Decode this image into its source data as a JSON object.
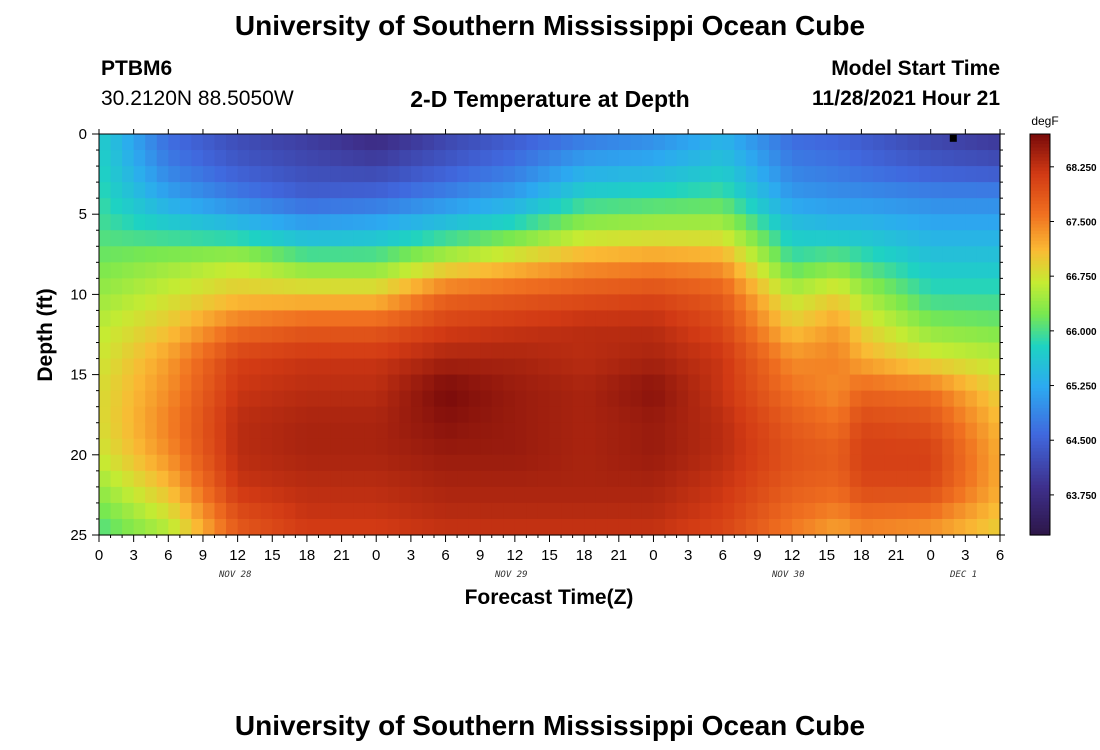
{
  "header": {
    "title": "University of Southern Mississippi Ocean Cube",
    "station": "PTBM6",
    "coords": "30.2120N  88.5050W",
    "plot_title": "2-D Temperature at Depth",
    "model_label": "Model Start Time",
    "model_time": "11/28/2021 Hour 21"
  },
  "footer": {
    "title": "University of Southern Mississippi Ocean Cube"
  },
  "chart_data": {
    "type": "heatmap",
    "title": "2-D Temperature at Depth",
    "xlabel": "Forecast Time(Z)",
    "ylabel": "Depth (ft)",
    "x_ticks": [
      "0",
      "3",
      "6",
      "9",
      "12",
      "15",
      "18",
      "21",
      "0",
      "3",
      "6",
      "9",
      "12",
      "15",
      "18",
      "21",
      "0",
      "3",
      "6",
      "9",
      "12",
      "15",
      "18",
      "21",
      "0",
      "3",
      "6"
    ],
    "x_range_hours": [
      0,
      78
    ],
    "y_ticks": [
      0,
      5,
      10,
      15,
      20,
      25
    ],
    "y_range": [
      0,
      25
    ],
    "date_labels": [
      {
        "label": "NOV 28",
        "hour": 12
      },
      {
        "label": "NOV 29",
        "hour": 36
      },
      {
        "label": "NOV 30",
        "hour": 60
      },
      {
        "label": "DEC 1",
        "hour": 72
      }
    ],
    "colorbar": {
      "unit": "degF",
      "min": 63.2,
      "max": 68.7,
      "tick_values": [
        63.75,
        64.5,
        65.25,
        66.0,
        66.75,
        67.5,
        68.25
      ],
      "tick_labels": [
        "63.750",
        "64.500",
        "65.250",
        "66.000",
        "66.750",
        "67.500",
        "68.250"
      ]
    },
    "depths_ft": [
      0,
      2,
      4,
      6,
      8,
      10,
      12,
      14,
      16,
      18,
      20,
      22,
      24,
      25
    ],
    "times_h": [
      0,
      6,
      12,
      18,
      24,
      30,
      36,
      42,
      48,
      54,
      60,
      64,
      66,
      72,
      78
    ],
    "temperature_degF": [
      [
        65.7,
        64.6,
        64.2,
        64.0,
        63.7,
        64.1,
        64.4,
        64.7,
        64.9,
        65.3,
        64.6,
        64.5,
        64.4,
        64.1,
        63.9
      ],
      [
        65.8,
        64.8,
        64.4,
        64.2,
        64.1,
        64.4,
        64.7,
        65.2,
        65.3,
        65.6,
        64.8,
        64.7,
        64.6,
        64.4,
        64.3
      ],
      [
        65.9,
        65.2,
        64.8,
        64.5,
        64.6,
        64.9,
        65.2,
        65.8,
        65.9,
        66.0,
        65.1,
        65.0,
        65.0,
        64.9,
        64.9
      ],
      [
        66.0,
        65.8,
        65.6,
        65.3,
        65.4,
        65.7,
        66.0,
        66.5,
        66.6,
        66.6,
        65.6,
        65.5,
        65.5,
        65.3,
        65.3
      ],
      [
        66.2,
        66.4,
        66.6,
        66.2,
        66.2,
        66.7,
        67.0,
        67.3,
        67.4,
        67.3,
        66.0,
        66.2,
        66.0,
        65.6,
        65.6
      ],
      [
        66.4,
        66.7,
        67.0,
        67.0,
        67.0,
        67.7,
        67.8,
        67.9,
        68.0,
        67.8,
        66.6,
        66.9,
        66.5,
        65.9,
        65.9
      ],
      [
        66.6,
        67.0,
        67.6,
        67.8,
        67.8,
        68.1,
        68.2,
        68.3,
        68.3,
        68.0,
        67.0,
        67.3,
        66.9,
        66.3,
        66.2
      ],
      [
        66.7,
        67.3,
        68.1,
        68.2,
        68.2,
        68.4,
        68.4,
        68.3,
        68.4,
        68.2,
        67.4,
        67.5,
        67.2,
        66.8,
        66.6
      ],
      [
        66.8,
        67.4,
        68.2,
        68.3,
        68.3,
        68.7,
        68.5,
        68.4,
        68.6,
        68.2,
        67.6,
        67.4,
        67.7,
        67.6,
        66.9
      ],
      [
        66.8,
        67.5,
        68.3,
        68.4,
        68.4,
        68.6,
        68.5,
        68.4,
        68.5,
        68.3,
        67.8,
        67.6,
        68.0,
        67.9,
        67.1
      ],
      [
        66.7,
        67.4,
        68.3,
        68.4,
        68.4,
        68.5,
        68.5,
        68.4,
        68.5,
        68.3,
        67.9,
        67.8,
        68.1,
        68.1,
        67.2
      ],
      [
        66.4,
        67.1,
        68.2,
        68.3,
        68.3,
        68.4,
        68.4,
        68.4,
        68.4,
        68.2,
        67.8,
        67.7,
        68.0,
        68.0,
        67.2
      ],
      [
        66.1,
        66.7,
        67.9,
        68.2,
        68.2,
        68.3,
        68.3,
        68.3,
        68.3,
        68.1,
        67.6,
        67.4,
        67.6,
        67.5,
        67.0
      ],
      [
        66.0,
        66.5,
        67.8,
        68.1,
        68.1,
        68.2,
        68.2,
        68.2,
        68.2,
        68.0,
        67.5,
        67.2,
        67.4,
        67.3,
        66.9
      ]
    ]
  }
}
